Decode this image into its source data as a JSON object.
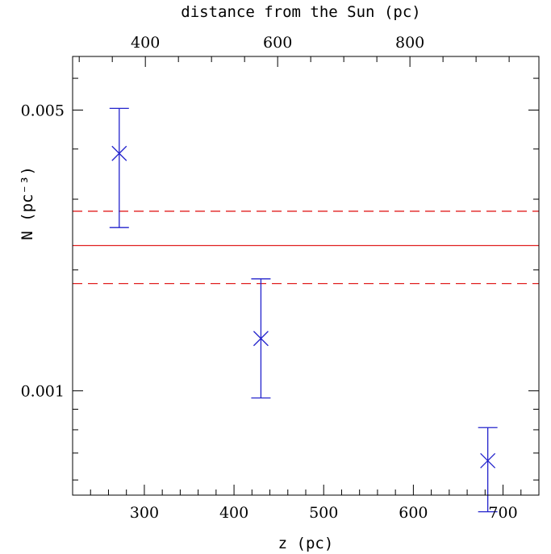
{
  "chart_data": {
    "type": "scatter",
    "xlabel": "z (pc)",
    "top_xlabel": "distance from the Sun (pc)",
    "ylabel": "N (pc⁻³)",
    "y_scale": "log",
    "xlim": [
      220,
      740
    ],
    "ylim": [
      0.00055,
      0.0068
    ],
    "top_xlim": [
      290,
      995
    ],
    "x_ticks": [
      300,
      400,
      500,
      600,
      700
    ],
    "x_tick_labels": [
      "300",
      "400",
      "500",
      "600",
      "700"
    ],
    "top_x_ticks": [
      400,
      600,
      800
    ],
    "top_x_tick_labels": [
      "400",
      "600",
      "800"
    ],
    "y_ticks": [
      0.001,
      0.005
    ],
    "y_tick_labels": [
      "0.001",
      "0.005"
    ],
    "series": [
      {
        "marker": "x",
        "color": "#2222cc",
        "points": [
          {
            "x": 272,
            "y": 0.0039,
            "ylo": 0.00255,
            "yhi": 0.00505
          },
          {
            "x": 430,
            "y": 0.00135,
            "ylo": 0.00096,
            "yhi": 0.0019
          },
          {
            "x": 683,
            "y": 0.00067,
            "ylo": 0.0005,
            "yhi": 0.00081
          }
        ]
      }
    ],
    "hlines": [
      {
        "y": 0.0023,
        "style": "solid",
        "color": "#e02020"
      },
      {
        "y": 0.0028,
        "style": "dashed",
        "color": "#e02020"
      },
      {
        "y": 0.00185,
        "style": "dashed",
        "color": "#e02020"
      }
    ]
  }
}
